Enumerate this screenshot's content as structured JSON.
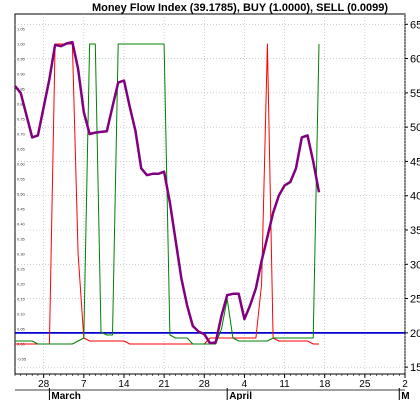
{
  "chart_data": {
    "type": "line",
    "title": "Money Flow Index (39.1785), BUY (1.0000), SELL (0.0099)",
    "grid": true,
    "legend": "none",
    "x_months": [
      {
        "label": "March",
        "day": 0
      },
      {
        "label": "April",
        "day": 31
      },
      {
        "label": "M",
        "day": 61
      }
    ],
    "x_ticks": [
      {
        "label": "28",
        "day": -1
      },
      {
        "label": "7",
        "day": 6
      },
      {
        "label": "14",
        "day": 13
      },
      {
        "label": "21",
        "day": 20
      },
      {
        "label": "28",
        "day": 27
      },
      {
        "label": "4",
        "day": 34
      },
      {
        "label": "11",
        "day": 41
      },
      {
        "label": "18",
        "day": 48
      },
      {
        "label": "25",
        "day": 55
      },
      {
        "label": "2",
        "day": 62
      }
    ],
    "x_range": [
      -6,
      62
    ],
    "right_axis": {
      "range": [
        14,
        66.5
      ],
      "ticks": [
        "15",
        "20",
        "25",
        "30",
        "35",
        "40",
        "45",
        "50",
        "55",
        "60",
        "65"
      ]
    },
    "left_axis": {
      "range": [
        -0.1,
        1.1
      ],
      "ticks": [
        "1.05",
        "1.00",
        "0.95",
        "0.90",
        "0.85",
        "0.80",
        "0.75",
        "0.70",
        "0.65",
        "0.60",
        "0.55",
        "0.50",
        "0.45",
        "0.40",
        "0.35",
        "0.30",
        "0.25",
        "0.20",
        "0.15",
        "0.10",
        "0.05",
        "0.00",
        "-0.05"
      ]
    },
    "reference_line": {
      "value": 20,
      "color": "#0000cc"
    },
    "series": [
      {
        "axis": "right",
        "color": "#800080",
        "width": 2.5,
        "x": [
          -6,
          -5,
          -3,
          -2,
          0,
          1,
          2,
          3,
          4,
          5,
          6,
          7,
          8,
          9,
          10,
          11,
          12,
          13,
          14,
          15,
          16,
          17,
          18,
          19,
          20,
          21,
          22,
          23,
          24,
          25,
          26,
          27,
          28,
          29,
          30,
          31,
          32,
          33,
          34,
          35,
          36,
          37,
          38,
          39,
          40,
          41,
          42,
          43,
          44,
          45,
          46,
          47
        ],
        "values": [
          56,
          55,
          48.5,
          48.8,
          57,
          62,
          61.8,
          62.2,
          62.4,
          58.5,
          52.2,
          49,
          49.2,
          49.3,
          49.4,
          53,
          56.5,
          56.8,
          53,
          49.5,
          44,
          43,
          43.2,
          43.2,
          43.5,
          39,
          33.5,
          28,
          24,
          21,
          20.2,
          19.8,
          18.5,
          18.6,
          22.5,
          25.5,
          25.7,
          25.7,
          22,
          24,
          26.5,
          30.5,
          34,
          37.5,
          40,
          41.5,
          42,
          44,
          48.5,
          48.8,
          45,
          40.5
        ]
      },
      {
        "axis": "left",
        "color": "#ff0000",
        "width": 1,
        "x": [
          -6,
          -3,
          -2,
          -1,
          0,
          1,
          2,
          3,
          4,
          5,
          6,
          7,
          8,
          9,
          10,
          11,
          12,
          13,
          14,
          15,
          16,
          17,
          18,
          19,
          20,
          21,
          22,
          23,
          24,
          25,
          26,
          27,
          28,
          29,
          30,
          31,
          32,
          33,
          34,
          35,
          36,
          37,
          38,
          39,
          40,
          41,
          42,
          43,
          44,
          45,
          46,
          47
        ],
        "values": [
          0.0,
          0.0,
          0.0,
          0.0,
          0.0,
          1.0,
          1.0,
          1.0,
          1.0,
          0.3,
          0.02,
          0.01,
          0.01,
          0.01,
          0.01,
          0.01,
          0.01,
          0.01,
          0.0,
          0.0,
          0.0,
          0.0,
          0.0,
          0.0,
          0.0,
          0.0,
          0.0,
          0.0,
          0.0,
          0.0,
          0.0,
          0.0,
          0.02,
          0.02,
          0.02,
          0.02,
          0.02,
          0.02,
          0.02,
          0.02,
          0.02,
          0.2,
          1.0,
          0.02,
          0.01,
          0.01,
          0.01,
          0.01,
          0.01,
          0.01,
          0.0,
          0.0
        ]
      },
      {
        "axis": "left",
        "color": "#008000",
        "width": 1,
        "x": [
          -6,
          -3,
          -2,
          -1,
          0,
          1,
          2,
          3,
          4,
          5,
          6,
          7,
          8,
          9,
          10,
          11,
          12,
          13,
          14,
          15,
          16,
          17,
          18,
          19,
          20,
          21,
          22,
          23,
          24,
          25,
          26,
          27,
          28,
          29,
          30,
          31,
          32,
          33,
          34,
          35,
          36,
          37,
          38,
          39,
          40,
          41,
          42,
          43,
          44,
          45,
          46,
          47
        ],
        "values": [
          0.01,
          0.01,
          0.0,
          0.0,
          0.0,
          0.0,
          0.0,
          0.0,
          0.0,
          0.01,
          0.02,
          1.0,
          1.0,
          0.04,
          0.03,
          0.03,
          1.0,
          1.0,
          1.0,
          1.0,
          1.0,
          1.0,
          1.0,
          1.0,
          1.0,
          0.03,
          0.02,
          0.02,
          0.02,
          0.0,
          0.0,
          0.0,
          0.0,
          0.0,
          0.05,
          0.15,
          0.02,
          0.01,
          0.01,
          0.01,
          0.01,
          0.01,
          0.01,
          0.02,
          0.02,
          0.02,
          0.02,
          0.02,
          0.02,
          0.02,
          0.02,
          1.0
        ]
      }
    ]
  }
}
